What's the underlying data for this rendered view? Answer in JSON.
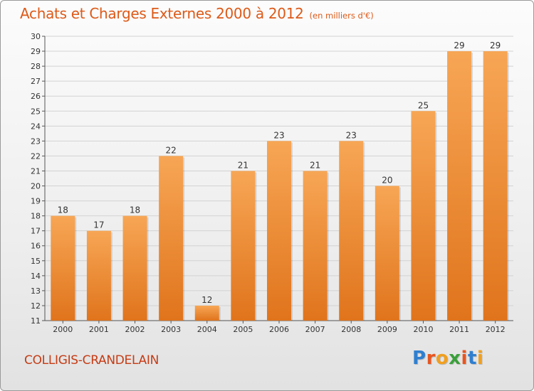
{
  "header": {
    "title": "Achats et Charges Externes 2000 à 2012",
    "unit": "(en milliers d'€)"
  },
  "footer": {
    "place": "COLLIGIS-CRANDELAIN",
    "logo_text": "Proxiti"
  },
  "colors": {
    "title": "#dd5a18",
    "place": "#c53c15",
    "bar_light": "#f7a655",
    "bar_dark": "#e0741c",
    "logo_letters": [
      "#2f7fd0",
      "#e8551f",
      "#f0a020",
      "#3aa03a",
      "#e8551f",
      "#2f7fd0",
      "#f0a020"
    ]
  },
  "chart_data": {
    "type": "bar",
    "title": "Achats et Charges Externes 2000 à 2012",
    "subtitle": "(en milliers d'€)",
    "xlabel": "",
    "ylabel": "",
    "categories": [
      "2000",
      "2001",
      "2002",
      "2003",
      "2004",
      "2005",
      "2006",
      "2007",
      "2008",
      "2009",
      "2010",
      "2011",
      "2012"
    ],
    "values": [
      18,
      17,
      18,
      22,
      12,
      21,
      23,
      21,
      23,
      20,
      25,
      29,
      29
    ],
    "ylim": [
      11,
      30
    ],
    "yticks": [
      11,
      12,
      13,
      14,
      15,
      16,
      17,
      18,
      19,
      20,
      21,
      22,
      23,
      24,
      25,
      26,
      27,
      28,
      29,
      30
    ],
    "grid": true,
    "data_labels": true,
    "legend": "none"
  }
}
